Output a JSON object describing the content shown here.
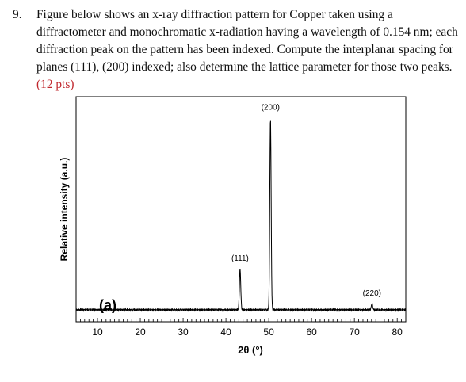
{
  "question": {
    "number": "9.",
    "text": "Figure below shows an x-ray diffraction pattern for Copper taken using a diffractometer and monochromatic x-radiation having a wavelength of 0.154 nm; each diffraction peak on the pattern has been indexed. Compute the interplanar spacing for planes (111), (200) indexed; also determine the lattice parameter for those two peaks.",
    "points_label": "(12 pts)",
    "points_color": "#c0272d"
  },
  "chart_data": {
    "type": "line",
    "panel_label": "(a)",
    "xlabel": "2θ (°)",
    "ylabel": "Relative intensity (a.u.)",
    "xlim": [
      5,
      82
    ],
    "ylim": [
      0,
      100
    ],
    "xticks": [
      10,
      20,
      30,
      40,
      50,
      60,
      70,
      80
    ],
    "grid": false,
    "baseline": 2,
    "peaks": [
      {
        "label": "(111)",
        "x": 43.3,
        "height": 22
      },
      {
        "label": "(200)",
        "x": 50.4,
        "height": 96
      },
      {
        "label": "(220)",
        "x": 74.1,
        "height": 5
      }
    ]
  }
}
